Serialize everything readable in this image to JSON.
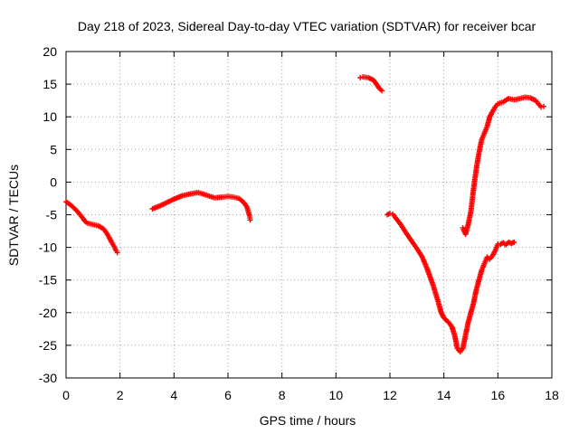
{
  "chart_data": {
    "type": "scatter",
    "title": "Day 218 of 2023, Sidereal Day-to-day VTEC variation (SDTVAR) for receiver bcar",
    "xlabel": "GPS time / hours",
    "ylabel": "SDTVAR / TECUs",
    "xlim": [
      0,
      18
    ],
    "ylim": [
      -30,
      20
    ],
    "xticks": [
      0,
      2,
      4,
      6,
      8,
      10,
      12,
      14,
      16,
      18
    ],
    "yticks": [
      -30,
      -25,
      -20,
      -15,
      -10,
      -5,
      0,
      5,
      10,
      15,
      20
    ],
    "grid": true,
    "marker": "plus",
    "color": "#ff0000",
    "series": [
      {
        "x": [
          0,
          0.2,
          0.4,
          0.6,
          0.7,
          0.8,
          1.0,
          1.2,
          1.4,
          1.5,
          1.6,
          1.7,
          1.8,
          1.85,
          1.9
        ],
        "y": [
          -3.0,
          -3.6,
          -4.4,
          -5.4,
          -6.0,
          -6.3,
          -6.5,
          -6.7,
          -7.2,
          -7.8,
          -8.5,
          -9.3,
          -10.0,
          -10.5,
          -10.8
        ]
      },
      {
        "x": [
          3.2,
          3.5,
          3.8,
          4.0,
          4.3,
          4.6,
          4.9,
          5.2,
          5.5,
          5.8,
          6.0,
          6.2,
          6.4,
          6.5,
          6.6,
          6.7,
          6.75,
          6.8,
          6.82
        ],
        "y": [
          -4.1,
          -3.6,
          -3.0,
          -2.6,
          -2.1,
          -1.8,
          -1.6,
          -2.0,
          -2.4,
          -2.3,
          -2.2,
          -2.3,
          -2.5,
          -2.8,
          -3.2,
          -3.8,
          -4.5,
          -5.2,
          -5.8
        ]
      },
      {
        "x": [
          10.9,
          11.0,
          11.2,
          11.4,
          11.5,
          11.6,
          11.7
        ],
        "y": [
          16.0,
          16.1,
          16.0,
          15.6,
          15.0,
          14.4,
          14.0
        ]
      },
      {
        "x": [
          11.9,
          12.0,
          12.1,
          12.2,
          12.4,
          12.6,
          12.8,
          13.0,
          13.2,
          13.4,
          13.6,
          13.8,
          13.9,
          14.0,
          14.2,
          14.3,
          14.4,
          14.5,
          14.6,
          14.7,
          14.8,
          14.9,
          15.0,
          15.1,
          15.2,
          15.3,
          15.4,
          15.5,
          15.6,
          15.7,
          15.8,
          15.9,
          16.0,
          16.1,
          16.2,
          16.3,
          16.4,
          16.5,
          16.6
        ],
        "y": [
          -5.0,
          -4.8,
          -4.9,
          -5.4,
          -6.5,
          -7.8,
          -9.0,
          -10.2,
          -11.5,
          -13.5,
          -15.8,
          -18.5,
          -20.0,
          -20.8,
          -21.6,
          -22.2,
          -23.5,
          -25.5,
          -26.0,
          -25.5,
          -23.5,
          -21.5,
          -20.0,
          -18.5,
          -16.5,
          -15.0,
          -13.5,
          -12.5,
          -11.5,
          -11.8,
          -11.3,
          -10.5,
          -9.5,
          -9.5,
          -9.3,
          -9.6,
          -9.2,
          -9.4,
          -9.2
        ]
      },
      {
        "x": [
          14.7,
          14.8,
          14.9,
          15.0,
          15.1,
          15.2,
          15.3,
          15.4,
          15.5,
          15.6,
          15.7,
          15.8,
          15.9,
          16.0,
          16.2,
          16.4,
          16.6,
          16.8,
          17.0,
          17.2,
          17.4,
          17.5,
          17.6,
          17.7
        ],
        "y": [
          -7.0,
          -8.0,
          -6.5,
          -4.5,
          -1.0,
          2.0,
          4.5,
          6.5,
          7.5,
          8.5,
          10.0,
          10.8,
          11.5,
          12.0,
          12.3,
          12.8,
          12.6,
          12.8,
          13.0,
          12.9,
          12.5,
          12.0,
          11.5,
          11.6
        ]
      }
    ]
  }
}
